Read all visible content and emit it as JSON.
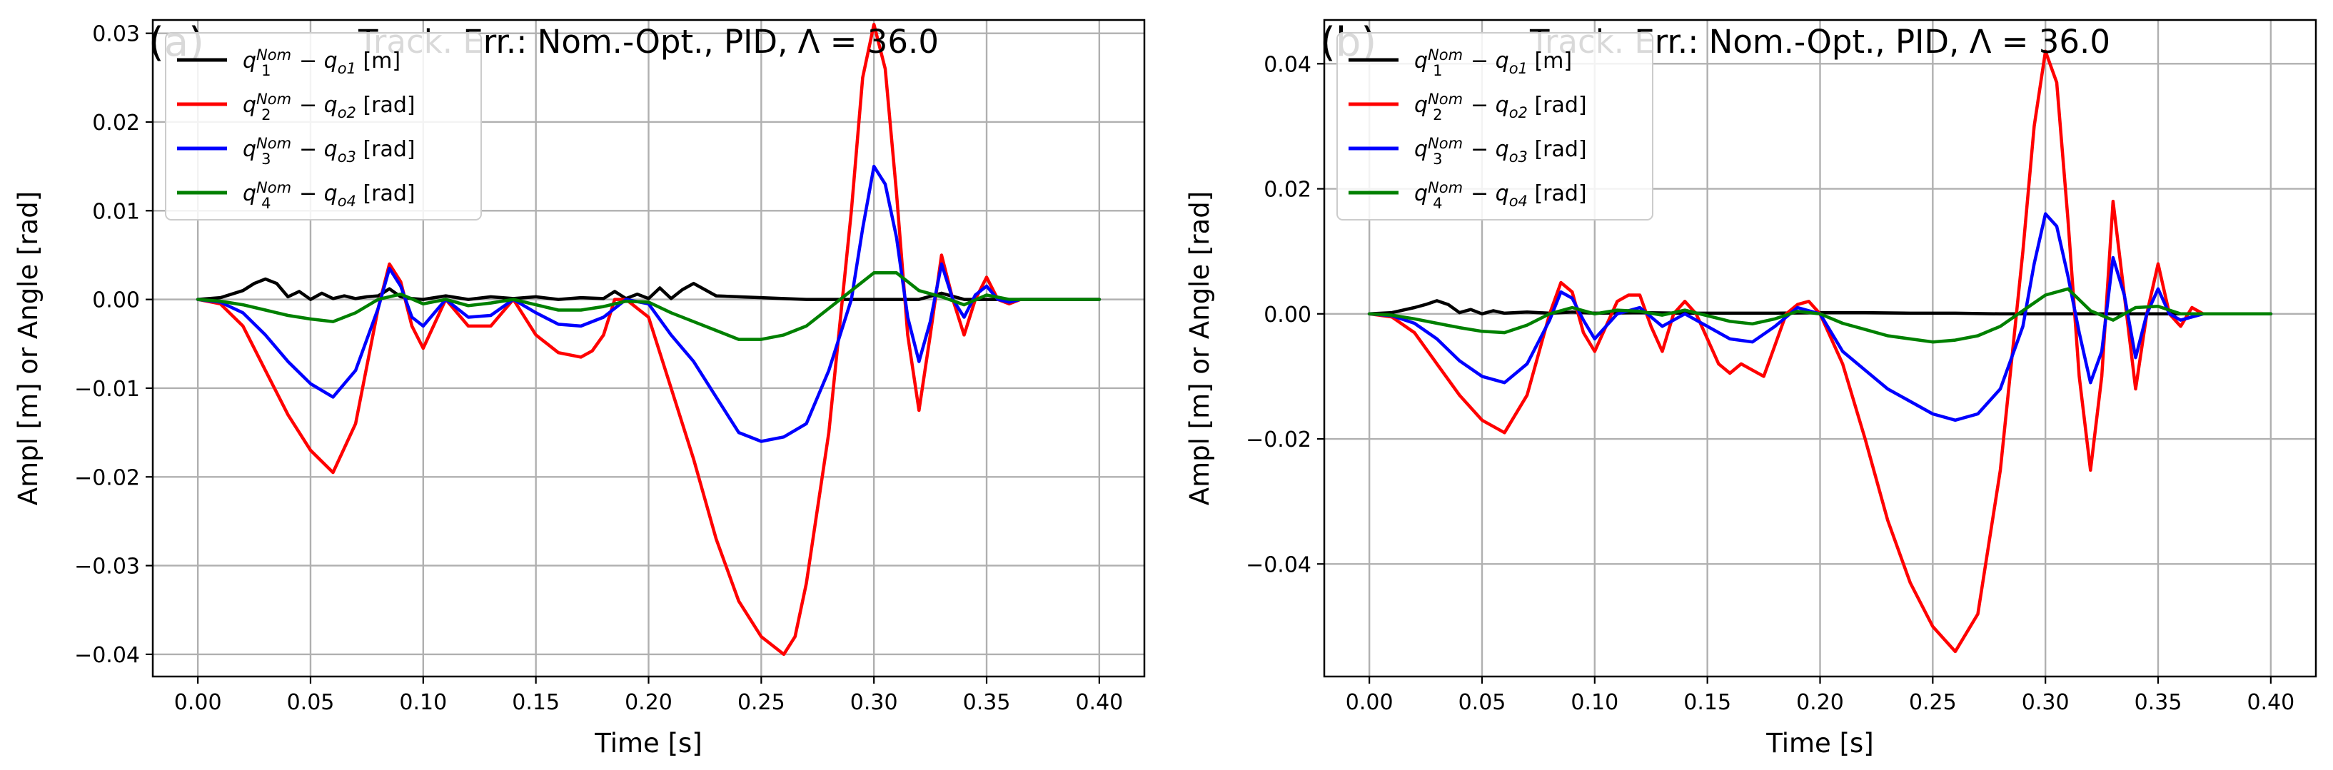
{
  "chart_data": [
    {
      "type": "line",
      "panel_label": "(a)",
      "title": "Track. Err.: Nom.-Opt., PID, Λ = 36.0",
      "xlabel": "Time [s]",
      "ylabel": "Ampl [m] or Angle [rad]",
      "xlim": [
        -0.02,
        0.42
      ],
      "ylim": [
        -0.0425,
        0.0315
      ],
      "xticks": [
        0.0,
        0.05,
        0.1,
        0.15,
        0.2,
        0.25,
        0.3,
        0.35,
        0.4
      ],
      "xtick_labels": [
        "0.00",
        "0.05",
        "0.10",
        "0.15",
        "0.20",
        "0.25",
        "0.30",
        "0.35",
        "0.40"
      ],
      "yticks": [
        -0.04,
        -0.03,
        -0.02,
        -0.01,
        0.0,
        0.01,
        0.02,
        0.03
      ],
      "ytick_labels": [
        "−0.04",
        "−0.03",
        "−0.02",
        "−0.01",
        "0.00",
        "0.01",
        "0.02",
        "0.03"
      ],
      "grid": true,
      "legend_position": "top-left",
      "series": [
        {
          "name": "q1Nom − qo1 [m]",
          "color": "#000000",
          "x": [
            0.0,
            0.01,
            0.02,
            0.025,
            0.03,
            0.035,
            0.04,
            0.045,
            0.05,
            0.055,
            0.06,
            0.065,
            0.07,
            0.075,
            0.08,
            0.085,
            0.09,
            0.095,
            0.1,
            0.11,
            0.12,
            0.13,
            0.14,
            0.15,
            0.16,
            0.17,
            0.18,
            0.185,
            0.19,
            0.195,
            0.2,
            0.205,
            0.21,
            0.215,
            0.22,
            0.225,
            0.23,
            0.24,
            0.25,
            0.26,
            0.27,
            0.28,
            0.29,
            0.3,
            0.31,
            0.32,
            0.33,
            0.34,
            0.35,
            0.36,
            0.38,
            0.4
          ],
          "y": [
            0.0,
            0.0002,
            0.001,
            0.0018,
            0.0023,
            0.0018,
            0.0003,
            0.0009,
            0.0,
            0.0007,
            0.0001,
            0.0004,
            0.0001,
            0.0003,
            0.0004,
            0.0012,
            0.0003,
            0.0001,
            0.0,
            0.0004,
            0.0,
            0.0003,
            0.0001,
            0.0003,
            0.0,
            0.0002,
            0.0001,
            0.0009,
            0.0001,
            0.0006,
            0.0001,
            0.0013,
            0.0001,
            0.0011,
            0.0018,
            0.0011,
            0.0004,
            0.0003,
            0.0002,
            0.0001,
            0.0,
            0.0,
            0.0,
            0.0,
            0.0,
            0.0,
            0.0007,
            0.0,
            0.0,
            0.0,
            0.0,
            0.0
          ]
        },
        {
          "name": "q2Nom − qo2 [rad]",
          "color": "#ff0000",
          "x": [
            0.0,
            0.01,
            0.02,
            0.03,
            0.04,
            0.05,
            0.06,
            0.07,
            0.08,
            0.085,
            0.09,
            0.095,
            0.1,
            0.11,
            0.12,
            0.13,
            0.14,
            0.15,
            0.16,
            0.17,
            0.175,
            0.18,
            0.185,
            0.19,
            0.2,
            0.21,
            0.22,
            0.23,
            0.24,
            0.25,
            0.26,
            0.265,
            0.27,
            0.28,
            0.29,
            0.295,
            0.3,
            0.305,
            0.31,
            0.315,
            0.32,
            0.325,
            0.33,
            0.335,
            0.34,
            0.345,
            0.35,
            0.355,
            0.36,
            0.365,
            0.37,
            0.38,
            0.4
          ],
          "y": [
            0.0,
            -0.0005,
            -0.003,
            -0.008,
            -0.013,
            -0.017,
            -0.0195,
            -0.014,
            -0.001,
            0.004,
            0.002,
            -0.003,
            -0.0055,
            0.0,
            -0.003,
            -0.003,
            0.0,
            -0.004,
            -0.006,
            -0.0065,
            -0.0058,
            -0.004,
            0.0,
            0.0,
            -0.002,
            -0.01,
            -0.018,
            -0.027,
            -0.034,
            -0.038,
            -0.04,
            -0.038,
            -0.032,
            -0.015,
            0.01,
            0.025,
            0.031,
            0.026,
            0.012,
            -0.004,
            -0.0125,
            -0.004,
            0.005,
            0.0,
            -0.004,
            0.0,
            0.0025,
            0.0,
            -0.0005,
            0.0,
            0.0,
            0.0,
            0.0
          ]
        },
        {
          "name": "q3Nom − qo3 [rad]",
          "color": "#0000ff",
          "x": [
            0.0,
            0.01,
            0.02,
            0.03,
            0.04,
            0.05,
            0.06,
            0.07,
            0.08,
            0.085,
            0.09,
            0.095,
            0.1,
            0.11,
            0.12,
            0.13,
            0.14,
            0.15,
            0.16,
            0.17,
            0.18,
            0.185,
            0.19,
            0.2,
            0.21,
            0.22,
            0.23,
            0.24,
            0.25,
            0.26,
            0.27,
            0.28,
            0.29,
            0.295,
            0.3,
            0.305,
            0.31,
            0.315,
            0.32,
            0.325,
            0.33,
            0.335,
            0.34,
            0.345,
            0.35,
            0.355,
            0.36,
            0.365,
            0.37,
            0.38,
            0.4
          ],
          "y": [
            0.0,
            -0.0003,
            -0.0015,
            -0.004,
            -0.007,
            -0.0095,
            -0.011,
            -0.008,
            -0.001,
            0.0035,
            0.0015,
            -0.002,
            -0.003,
            0.0,
            -0.002,
            -0.0018,
            0.0,
            -0.0015,
            -0.0028,
            -0.003,
            -0.002,
            -0.001,
            0.0,
            -0.0005,
            -0.004,
            -0.007,
            -0.011,
            -0.015,
            -0.016,
            -0.0155,
            -0.014,
            -0.008,
            0.0,
            0.008,
            0.015,
            0.013,
            0.007,
            -0.002,
            -0.007,
            -0.0025,
            0.004,
            0.0,
            -0.002,
            0.0005,
            0.0015,
            0.0,
            -0.0003,
            0.0,
            0.0,
            0.0,
            0.0
          ]
        },
        {
          "name": "q4Nom − qo4 [rad]",
          "color": "#008000",
          "x": [
            0.0,
            0.01,
            0.02,
            0.03,
            0.04,
            0.05,
            0.06,
            0.07,
            0.08,
            0.09,
            0.1,
            0.11,
            0.12,
            0.13,
            0.14,
            0.15,
            0.16,
            0.17,
            0.18,
            0.19,
            0.2,
            0.21,
            0.22,
            0.23,
            0.24,
            0.25,
            0.26,
            0.27,
            0.28,
            0.29,
            0.3,
            0.31,
            0.32,
            0.33,
            0.34,
            0.35,
            0.36,
            0.38,
            0.4
          ],
          "y": [
            0.0,
            -0.0002,
            -0.0006,
            -0.0012,
            -0.0018,
            -0.0022,
            -0.0025,
            -0.0015,
            0.0,
            0.0006,
            -0.0005,
            0.0,
            -0.0007,
            -0.0004,
            0.0,
            -0.0006,
            -0.0012,
            -0.0012,
            -0.0008,
            -0.0002,
            -0.0003,
            -0.0015,
            -0.0025,
            -0.0035,
            -0.0045,
            -0.0045,
            -0.004,
            -0.003,
            -0.001,
            0.001,
            0.003,
            0.003,
            0.001,
            0.0003,
            -0.0006,
            0.0005,
            0.0,
            0.0,
            0.0
          ]
        }
      ]
    },
    {
      "type": "line",
      "panel_label": "(b)",
      "title": "Track. Err.: Nom.-Opt., PID, Λ = 36.0",
      "xlabel": "Time [s]",
      "ylabel": "Ampl [m] or Angle [rad]",
      "xlim": [
        -0.02,
        0.42
      ],
      "ylim": [
        -0.058,
        0.047
      ],
      "xticks": [
        0.0,
        0.05,
        0.1,
        0.15,
        0.2,
        0.25,
        0.3,
        0.35,
        0.4
      ],
      "xtick_labels": [
        "0.00",
        "0.05",
        "0.10",
        "0.15",
        "0.20",
        "0.25",
        "0.30",
        "0.35",
        "0.40"
      ],
      "yticks": [
        -0.04,
        -0.02,
        0.0,
        0.02,
        0.04
      ],
      "ytick_labels": [
        "−0.04",
        "−0.02",
        "0.00",
        "0.02",
        "0.04"
      ],
      "grid": true,
      "legend_position": "top-left",
      "series": [
        {
          "name": "q1Nom − qo1 [m]",
          "color": "#000000",
          "x": [
            0.0,
            0.01,
            0.02,
            0.025,
            0.03,
            0.035,
            0.04,
            0.045,
            0.05,
            0.055,
            0.06,
            0.07,
            0.08,
            0.09,
            0.1,
            0.12,
            0.14,
            0.16,
            0.18,
            0.2,
            0.22,
            0.24,
            0.26,
            0.28,
            0.3,
            0.32,
            0.34,
            0.36,
            0.38,
            0.4
          ],
          "y": [
            0.0,
            0.0002,
            0.001,
            0.0015,
            0.0021,
            0.0015,
            0.0002,
            0.0007,
            0.0,
            0.0005,
            0.0001,
            0.0003,
            0.0001,
            0.0003,
            0.0001,
            0.0002,
            0.0001,
            0.0001,
            0.0001,
            0.0002,
            0.0002,
            0.0001,
            0.0001,
            0.0,
            0.0,
            0.0,
            0.0,
            0.0,
            0.0,
            0.0
          ]
        },
        {
          "name": "q2Nom − qo2 [rad]",
          "color": "#ff0000",
          "x": [
            0.0,
            0.01,
            0.02,
            0.03,
            0.04,
            0.05,
            0.06,
            0.07,
            0.08,
            0.085,
            0.09,
            0.095,
            0.1,
            0.105,
            0.11,
            0.115,
            0.12,
            0.125,
            0.13,
            0.135,
            0.14,
            0.145,
            0.15,
            0.155,
            0.16,
            0.165,
            0.17,
            0.175,
            0.18,
            0.185,
            0.19,
            0.195,
            0.2,
            0.21,
            0.22,
            0.23,
            0.24,
            0.25,
            0.26,
            0.27,
            0.28,
            0.29,
            0.295,
            0.3,
            0.305,
            0.31,
            0.315,
            0.32,
            0.325,
            0.33,
            0.335,
            0.34,
            0.345,
            0.35,
            0.355,
            0.36,
            0.365,
            0.37,
            0.38,
            0.4
          ],
          "y": [
            0.0,
            -0.0005,
            -0.003,
            -0.008,
            -0.013,
            -0.017,
            -0.019,
            -0.013,
            0.0,
            0.005,
            0.0035,
            -0.003,
            -0.006,
            -0.002,
            0.002,
            0.003,
            0.003,
            -0.002,
            -0.006,
            0.0,
            0.002,
            0.0,
            -0.004,
            -0.008,
            -0.0095,
            -0.008,
            -0.009,
            -0.01,
            -0.005,
            0.0,
            0.0015,
            0.002,
            0.0,
            -0.008,
            -0.02,
            -0.033,
            -0.043,
            -0.05,
            -0.054,
            -0.048,
            -0.025,
            0.01,
            0.03,
            0.042,
            0.037,
            0.015,
            -0.01,
            -0.025,
            -0.01,
            0.018,
            0.003,
            -0.012,
            0.0,
            0.008,
            0.0,
            -0.002,
            0.001,
            0.0,
            0.0,
            0.0
          ]
        },
        {
          "name": "q3Nom − qo3 [rad]",
          "color": "#0000ff",
          "x": [
            0.0,
            0.01,
            0.02,
            0.03,
            0.04,
            0.05,
            0.06,
            0.07,
            0.08,
            0.085,
            0.09,
            0.095,
            0.1,
            0.11,
            0.12,
            0.13,
            0.14,
            0.15,
            0.16,
            0.17,
            0.18,
            0.19,
            0.2,
            0.21,
            0.22,
            0.23,
            0.24,
            0.25,
            0.26,
            0.27,
            0.28,
            0.29,
            0.295,
            0.3,
            0.305,
            0.31,
            0.315,
            0.32,
            0.325,
            0.33,
            0.335,
            0.34,
            0.345,
            0.35,
            0.355,
            0.36,
            0.37,
            0.38,
            0.4
          ],
          "y": [
            0.0,
            -0.0003,
            -0.0015,
            -0.004,
            -0.0075,
            -0.01,
            -0.011,
            -0.008,
            -0.001,
            0.0035,
            0.0025,
            -0.001,
            -0.004,
            0.0,
            0.001,
            -0.002,
            0.0,
            -0.002,
            -0.004,
            -0.0045,
            -0.002,
            0.001,
            0.0,
            -0.006,
            -0.009,
            -0.012,
            -0.014,
            -0.016,
            -0.017,
            -0.016,
            -0.012,
            -0.002,
            0.008,
            0.016,
            0.014,
            0.006,
            -0.003,
            -0.011,
            -0.006,
            0.009,
            0.003,
            -0.007,
            0.0,
            0.004,
            0.0,
            -0.001,
            0.0,
            0.0,
            0.0
          ]
        },
        {
          "name": "q4Nom − qo4 [rad]",
          "color": "#008000",
          "x": [
            0.0,
            0.01,
            0.02,
            0.03,
            0.04,
            0.05,
            0.06,
            0.07,
            0.08,
            0.09,
            0.1,
            0.11,
            0.12,
            0.13,
            0.14,
            0.15,
            0.16,
            0.17,
            0.18,
            0.19,
            0.2,
            0.21,
            0.22,
            0.23,
            0.24,
            0.25,
            0.26,
            0.27,
            0.28,
            0.29,
            0.3,
            0.31,
            0.32,
            0.33,
            0.34,
            0.35,
            0.36,
            0.38,
            0.4
          ],
          "y": [
            0.0,
            -0.0002,
            -0.0008,
            -0.0015,
            -0.0022,
            -0.0028,
            -0.003,
            -0.0018,
            0.0,
            0.001,
            0.0,
            0.0006,
            0.0004,
            -0.0002,
            0.0006,
            -0.0003,
            -0.0012,
            -0.0016,
            -0.0008,
            0.0004,
            0.0,
            -0.0015,
            -0.0025,
            -0.0035,
            -0.004,
            -0.0045,
            -0.0042,
            -0.0035,
            -0.002,
            0.0005,
            0.003,
            0.004,
            0.0005,
            -0.001,
            0.001,
            0.0012,
            0.0,
            0.0,
            0.0
          ]
        }
      ]
    }
  ]
}
